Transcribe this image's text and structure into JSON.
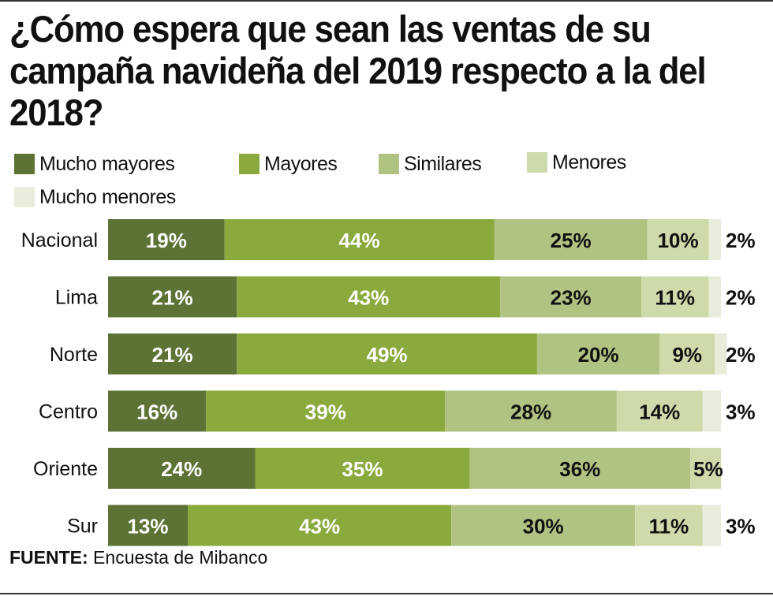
{
  "chart_data": {
    "type": "bar",
    "orientation": "horizontal-stacked-100",
    "title": "¿Cómo espera que sean las ventas de su campaña navideña del 2019 respecto a la del 2018?",
    "xlabel": "",
    "ylabel": "",
    "xlim": [
      0,
      100
    ],
    "grid": false,
    "legend_position": "top-left",
    "categories": [
      "Nacional",
      "Lima",
      "Norte",
      "Centro",
      "Oriente",
      "Sur"
    ],
    "series": [
      {
        "name": "Mucho mayores",
        "color": "#5c7335",
        "label_color": "#ffffff",
        "values": [
          19,
          21,
          21,
          16,
          24,
          13
        ]
      },
      {
        "name": "Mayores",
        "color": "#8aaa3e",
        "label_color": "#ffffff",
        "values": [
          44,
          43,
          49,
          39,
          35,
          43
        ]
      },
      {
        "name": "Similares",
        "color": "#b1c382",
        "label_color": "#111111",
        "values": [
          25,
          23,
          20,
          28,
          36,
          30
        ]
      },
      {
        "name": "Menores",
        "color": "#cfdaab",
        "label_color": "#111111",
        "values": [
          10,
          11,
          9,
          14,
          5,
          11
        ]
      },
      {
        "name": "Mucho menores",
        "color": "#e8eddb",
        "label_color": "#111111",
        "values": [
          2,
          2,
          2,
          3,
          0,
          3
        ]
      }
    ],
    "value_suffix": "%"
  },
  "source": {
    "label": "FUENTE:",
    "text": " Encuesta de Mibanco"
  }
}
